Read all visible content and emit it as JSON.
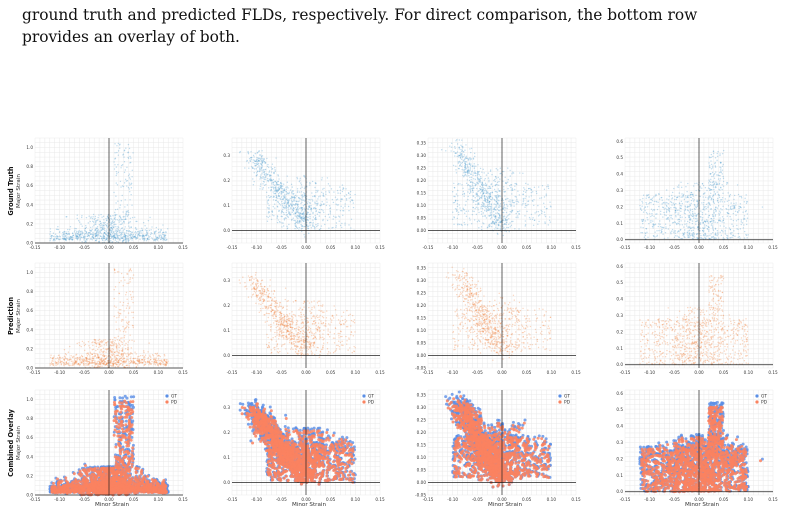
{
  "caption": {
    "line1": "ground truth and predicted FLDs, respectively.  For direct comparison, the bottom row",
    "line2": "provides an overlay of both."
  },
  "rows": [
    {
      "title": "Ground Truth",
      "ylabel": "Major Strain"
    },
    {
      "title": "Prediction",
      "ylabel": "Major Strain"
    },
    {
      "title": "Combined Overlay",
      "ylabel": "Major Strain"
    }
  ],
  "xlabel": "Minor Strain",
  "legend": {
    "gt": "GT",
    "pd": "PD"
  },
  "colors": {
    "gt": "#4f9fcf",
    "pd": "#f08a4b",
    "gt_overlay": "#5b8fe6",
    "pd_overlay": "#fa8360",
    "grid": "#e9e9e9",
    "axis": "#222222"
  },
  "chart_data": [
    {
      "type": "scatter",
      "row": "Ground Truth",
      "column": 1,
      "xlim": [
        -0.15,
        0.15
      ],
      "ylim": [
        0,
        1.1
      ],
      "xticks": [
        "-0.15",
        "-0.10",
        "-0.05",
        "0.00",
        "0.05",
        "0.10",
        "0.15"
      ],
      "yticks": [
        "0.0",
        "0.2",
        "0.4",
        "0.6",
        "0.8",
        "1.0"
      ],
      "grid": true
    },
    {
      "type": "scatter",
      "row": "Ground Truth",
      "column": 2,
      "xlim": [
        -0.15,
        0.15
      ],
      "ylim": [
        -0.05,
        0.37
      ],
      "xticks": [
        "-0.15",
        "-0.10",
        "-0.05",
        "0.00",
        "0.05",
        "0.10",
        "0.15"
      ],
      "yticks": [
        "0.0",
        "0.1",
        "0.2",
        "0.3"
      ],
      "grid": true
    },
    {
      "type": "scatter",
      "row": "Ground Truth",
      "column": 3,
      "xlim": [
        -0.15,
        0.15
      ],
      "ylim": [
        -0.05,
        0.37
      ],
      "xticks": [
        "-0.15",
        "-0.10",
        "-0.05",
        "0.00",
        "0.05",
        "0.10",
        "0.15"
      ],
      "yticks": [
        "0.00",
        "0.05",
        "0.10",
        "0.15",
        "0.20",
        "0.25",
        "0.30",
        "0.35"
      ],
      "grid": true
    },
    {
      "type": "scatter",
      "row": "Ground Truth",
      "column": 4,
      "xlim": [
        -0.15,
        0.15
      ],
      "ylim": [
        -0.02,
        0.62
      ],
      "xticks": [
        "-0.15",
        "-0.10",
        "-0.05",
        "0.00",
        "0.05",
        "0.10",
        "0.15"
      ],
      "yticks": [
        "0.0",
        "0.1",
        "0.2",
        "0.3",
        "0.4",
        "0.5",
        "0.6"
      ],
      "grid": true
    },
    {
      "type": "scatter",
      "row": "Prediction",
      "column": 1,
      "xlim": [
        -0.15,
        0.15
      ],
      "ylim": [
        0,
        1.1
      ],
      "xticks": [
        "-0.15",
        "-0.10",
        "-0.05",
        "0.00",
        "0.05",
        "0.10",
        "0.15"
      ],
      "yticks": [
        "0.0",
        "0.2",
        "0.4",
        "0.6",
        "0.8",
        "1.0"
      ],
      "grid": true
    },
    {
      "type": "scatter",
      "row": "Prediction",
      "column": 2,
      "xlim": [
        -0.15,
        0.15
      ],
      "ylim": [
        -0.05,
        0.37
      ],
      "xticks": [
        "-0.15",
        "-0.10",
        "-0.05",
        "0.00",
        "0.05",
        "0.10",
        "0.15"
      ],
      "yticks": [
        "0.0",
        "0.1",
        "0.2",
        "0.3"
      ],
      "grid": true
    },
    {
      "type": "scatter",
      "row": "Prediction",
      "column": 3,
      "xlim": [
        -0.15,
        0.15
      ],
      "ylim": [
        -0.05,
        0.37
      ],
      "xticks": [
        "-0.15",
        "-0.10",
        "-0.05",
        "0.00",
        "0.05",
        "0.10",
        "0.15"
      ],
      "yticks": [
        "-0.05",
        "0.00",
        "0.05",
        "0.10",
        "0.15",
        "0.20",
        "0.25",
        "0.30",
        "0.35"
      ],
      "grid": true
    },
    {
      "type": "scatter",
      "row": "Prediction",
      "column": 4,
      "xlim": [
        -0.15,
        0.15
      ],
      "ylim": [
        -0.02,
        0.62
      ],
      "xticks": [
        "-0.15",
        "-0.10",
        "-0.05",
        "0.00",
        "0.05",
        "0.10",
        "0.15"
      ],
      "yticks": [
        "0.0",
        "0.1",
        "0.2",
        "0.3",
        "0.4",
        "0.5",
        "0.6"
      ],
      "grid": true
    },
    {
      "type": "scatter",
      "row": "Combined Overlay",
      "column": 1,
      "xlim": [
        -0.15,
        0.15
      ],
      "ylim": [
        0,
        1.1
      ],
      "xticks": [
        "-0.15",
        "-0.10",
        "-0.05",
        "0.00",
        "0.05",
        "0.10",
        "0.15"
      ],
      "yticks": [
        "0.0",
        "0.2",
        "0.4",
        "0.6",
        "0.8",
        "1.0"
      ],
      "grid": true,
      "legend": "top-right"
    },
    {
      "type": "scatter",
      "row": "Combined Overlay",
      "column": 2,
      "xlim": [
        -0.15,
        0.15
      ],
      "ylim": [
        -0.05,
        0.37
      ],
      "xticks": [
        "-0.15",
        "-0.10",
        "-0.05",
        "0.00",
        "0.05",
        "0.10",
        "0.15"
      ],
      "yticks": [
        "0.0",
        "0.1",
        "0.2",
        "0.3"
      ],
      "grid": true,
      "legend": "top-right"
    },
    {
      "type": "scatter",
      "row": "Combined Overlay",
      "column": 3,
      "xlim": [
        -0.15,
        0.15
      ],
      "ylim": [
        -0.05,
        0.37
      ],
      "xticks": [
        "-0.15",
        "-0.10",
        "-0.05",
        "0.00",
        "0.05",
        "0.10",
        "0.15"
      ],
      "yticks": [
        "-0.05",
        "0.00",
        "0.05",
        "0.10",
        "0.15",
        "0.20",
        "0.25",
        "0.30",
        "0.35"
      ],
      "grid": true,
      "legend": "top-right"
    },
    {
      "type": "scatter",
      "row": "Combined Overlay",
      "column": 4,
      "xlim": [
        -0.15,
        0.15
      ],
      "ylim": [
        -0.02,
        0.62
      ],
      "xticks": [
        "-0.15",
        "-0.10",
        "-0.05",
        "0.00",
        "0.05",
        "0.10",
        "0.15"
      ],
      "yticks": [
        "0.0",
        "0.1",
        "0.2",
        "0.3",
        "0.4",
        "0.5",
        "0.6"
      ],
      "grid": true,
      "legend": "top-right"
    }
  ]
}
